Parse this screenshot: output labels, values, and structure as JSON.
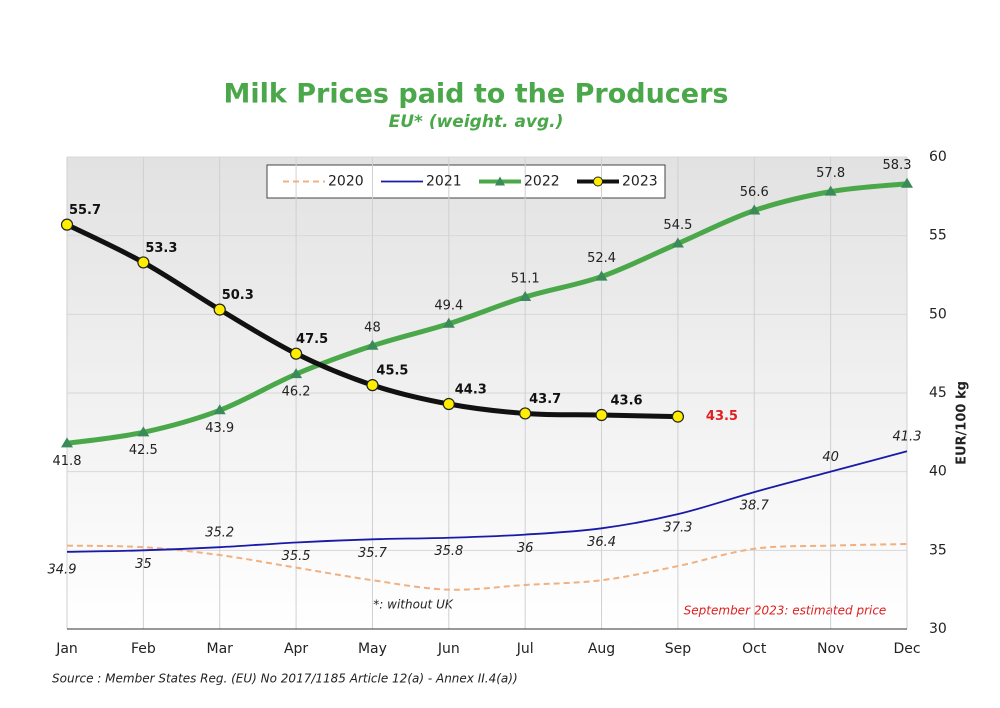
{
  "chart_data": {
    "type": "line",
    "title": "Milk Prices paid to the Producers",
    "subtitle": "EU* (weight. avg.)",
    "y_axis_label": "EUR/100 kg",
    "annotations": [
      "*: without UK",
      "September 2023: estimated price"
    ],
    "source": "Source : Member States Reg. (EU) No 2017/1185 Article 12(a) - Annex II.4(a))",
    "categories": [
      "Jan",
      "Feb",
      "Mar",
      "Apr",
      "May",
      "Jun",
      "Jul",
      "Aug",
      "Sep",
      "Oct",
      "Nov",
      "Dec"
    ],
    "ylim": [
      30,
      60
    ],
    "yticks": [
      30,
      35,
      40,
      45,
      50,
      55,
      60
    ],
    "grid": true,
    "series": [
      {
        "name": "2020",
        "color": "#f0b080",
        "values": [
          35.3,
          35.2,
          34.7,
          33.9,
          33.1,
          32.5,
          32.8,
          33.1,
          34.0,
          35.1,
          35.3,
          35.4
        ]
      },
      {
        "name": "2021",
        "color": "#1a1aa8",
        "values": [
          34.9,
          35.0,
          35.2,
          35.5,
          35.7,
          35.8,
          36.0,
          36.4,
          37.3,
          38.7,
          40.0,
          41.3
        ]
      },
      {
        "name": "2022",
        "color": "#4aa84a",
        "values": [
          41.8,
          42.5,
          43.9,
          46.2,
          48.0,
          49.4,
          51.1,
          52.4,
          54.5,
          56.6,
          57.8,
          58.3
        ]
      },
      {
        "name": "2023",
        "color": "#111111",
        "marker_color": "#ffee00",
        "estimate_color": "#e02020",
        "values": [
          55.7,
          53.3,
          50.3,
          47.5,
          45.5,
          44.3,
          43.7,
          43.6,
          43.5,
          null,
          null,
          null
        ]
      }
    ]
  }
}
